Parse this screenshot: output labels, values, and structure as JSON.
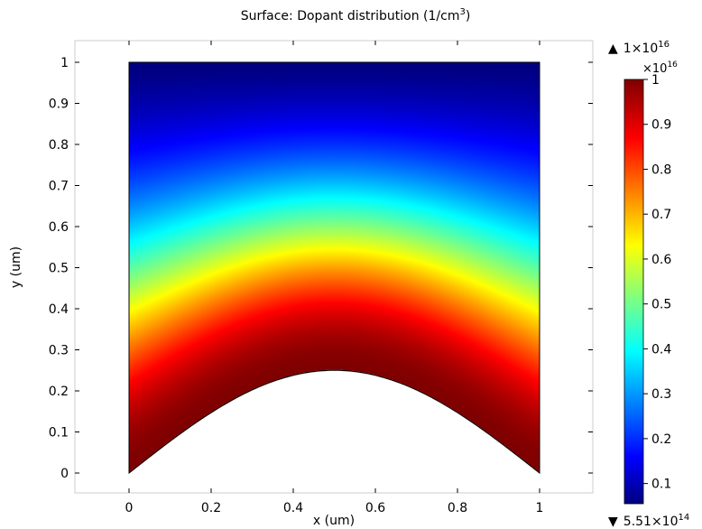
{
  "chart_data": {
    "type": "heatmap",
    "title": "Surface: Dopant distribution (1/cm",
    "title_unit_exp": "3",
    "title_close": ")",
    "xlabel": "x (um)",
    "ylabel": "y (um)",
    "xlim": [
      -0.13,
      1.13
    ],
    "ylim": [
      -0.05,
      1.06
    ],
    "x_ticks": [
      0,
      0.2,
      0.4,
      0.6,
      0.8,
      1
    ],
    "x_tick_labels": [
      "0",
      "0.2",
      "0.4",
      "0.6",
      "0.8",
      "1"
    ],
    "y_ticks": [
      0,
      0.1,
      0.2,
      0.3,
      0.4,
      0.5,
      0.6,
      0.7,
      0.8,
      0.9,
      1
    ],
    "y_tick_labels": [
      "0",
      "0.1",
      "0.2",
      "0.3",
      "0.4",
      "0.5",
      "0.6",
      "0.7",
      "0.8",
      "0.9",
      "1"
    ],
    "grid": false,
    "colormap": "jet",
    "domain": {
      "x_range": [
        0,
        1
      ],
      "top_y": 1,
      "bottom_boundary": "y = 0.25*sin(pi*x)",
      "bottom_peak_y": 0.25
    },
    "colorbar": {
      "range": [
        0.055,
        1
      ],
      "multiplier_base": "×10",
      "multiplier_exp": "16",
      "ticks": [
        0.1,
        0.2,
        0.3,
        0.4,
        0.5,
        0.6,
        0.7,
        0.8,
        0.9,
        1
      ],
      "tick_labels": [
        "0.1",
        "0.2",
        "0.3",
        "0.4",
        "0.5",
        "0.6",
        "0.7",
        "0.8",
        "0.9",
        "1"
      ],
      "max_marker": "▲",
      "max_base": "1×10",
      "max_exp": "16",
      "min_marker": "▼",
      "min_base": "5.51×10",
      "min_exp": "14"
    },
    "colors": {
      "jet_stops": [
        "#00007f",
        "#0000ff",
        "#00ffff",
        "#ffff00",
        "#ff0000",
        "#7f0000"
      ]
    }
  }
}
